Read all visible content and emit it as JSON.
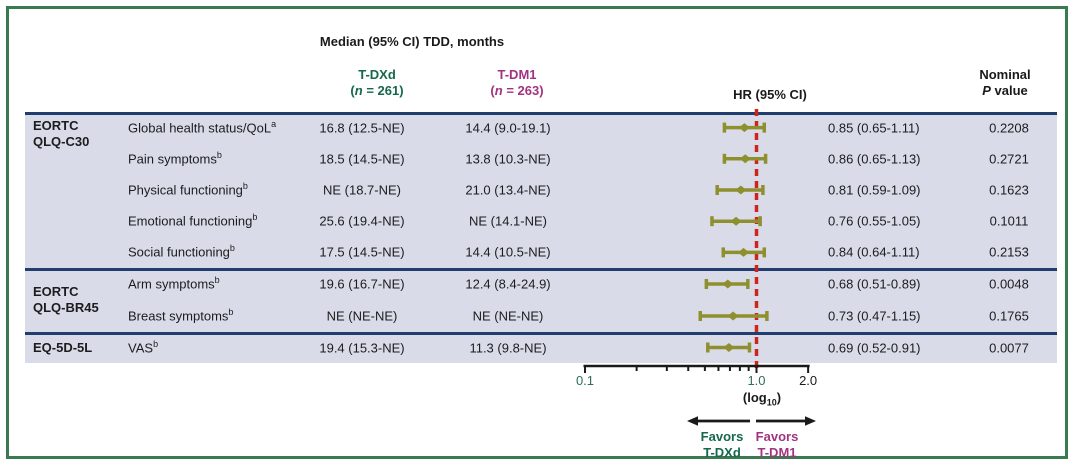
{
  "figure": {
    "title": "Median (95% CI) TDD, months",
    "columns": {
      "tdxd": {
        "name": "T-DXd",
        "n_open": "(",
        "n_italic": "n",
        "n_rest": " = 261)"
      },
      "tdm1": {
        "name": "T-DM1",
        "n_open": "(",
        "n_italic": "n",
        "n_rest": " = 263)"
      },
      "hr_header": "HR (95% CI)",
      "p_header_line1": "Nominal",
      "p_header_italic": "P",
      "p_header_rest": " value"
    }
  },
  "colors": {
    "frame_green": "#3a7a50",
    "band_bg": "#d9dce8",
    "navy_line": "#1f3e6e",
    "tdxd_green": "#15684b",
    "tdm1_magenta": "#a13380",
    "marker_olive": "#8e9030",
    "reference_red": "#cf241c",
    "axis_black": "#1a1a1a",
    "tick_green": "#2d6e58",
    "text": "#1c1c1e"
  },
  "chart_data": {
    "type": "forest",
    "title": "Median (95% CI) TDD, months",
    "x_scale": "log10",
    "x_min": 0.1,
    "x_max": 2.0,
    "reference_line": 1.0,
    "axis_ticks": [
      {
        "label": "0.1",
        "value": 0.1,
        "color": "#2d6e58"
      },
      {
        "label": "1.0",
        "value": 1.0,
        "color": "#2d6e58"
      },
      {
        "label": "2.0",
        "value": 2.0,
        "color": "#1a1a1a"
      }
    ],
    "minor_ticks": [
      0.2,
      0.3,
      0.4,
      0.5,
      0.6,
      0.7,
      0.8,
      0.9
    ],
    "axis_sublabel": {
      "pre": "(log",
      "sub": "10",
      "post": ")"
    },
    "favors_left": {
      "line1": "Favors",
      "line2": "T-DXd"
    },
    "favors_right": {
      "line1": "Favors",
      "line2": "T-DM1"
    },
    "groups": [
      {
        "name_lines": [
          "EORTC",
          "QLQ-C30"
        ],
        "rows": [
          {
            "label": "Global health status/QoL",
            "sup": "a",
            "tdxd": "16.8 (12.5-NE)",
            "tdm1": "14.4 (9.0-19.1)",
            "hr": 0.85,
            "ci_low": 0.65,
            "ci_high": 1.11,
            "hr_text": "0.85 (0.65-1.11)",
            "p": "0.2208"
          },
          {
            "label": "Pain symptoms",
            "sup": "b",
            "tdxd": "18.5 (14.5-NE)",
            "tdm1": "13.8 (10.3-NE)",
            "hr": 0.86,
            "ci_low": 0.65,
            "ci_high": 1.13,
            "hr_text": "0.86 (0.65-1.13)",
            "p": "0.2721"
          },
          {
            "label": "Physical functioning",
            "sup": "b",
            "tdxd": "NE (18.7-NE)",
            "tdm1": "21.0 (13.4-NE)",
            "hr": 0.81,
            "ci_low": 0.59,
            "ci_high": 1.09,
            "hr_text": "0.81 (0.59-1.09)",
            "p": "0.1623"
          },
          {
            "label": "Emotional functioning",
            "sup": "b",
            "tdxd": "25.6 (19.4-NE)",
            "tdm1": "NE (14.1-NE)",
            "hr": 0.76,
            "ci_low": 0.55,
            "ci_high": 1.05,
            "hr_text": "0.76 (0.55-1.05)",
            "p": "0.1011"
          },
          {
            "label": "Social functioning",
            "sup": "b",
            "tdxd": "17.5 (14.5-NE)",
            "tdm1": "14.4 (10.5-NE)",
            "hr": 0.84,
            "ci_low": 0.64,
            "ci_high": 1.11,
            "hr_text": "0.84 (0.64-1.11)",
            "p": "0.2153"
          }
        ]
      },
      {
        "name_lines": [
          "EORTC",
          "QLQ-BR45"
        ],
        "rows": [
          {
            "label": "Arm symptoms",
            "sup": "b",
            "tdxd": "19.6 (16.7-NE)",
            "tdm1": "12.4 (8.4-24.9)",
            "hr": 0.68,
            "ci_low": 0.51,
            "ci_high": 0.89,
            "hr_text": "0.68 (0.51-0.89)",
            "p": "0.0048"
          },
          {
            "label": "Breast symptoms",
            "sup": "b",
            "tdxd": "NE (NE-NE)",
            "tdm1": "NE (NE-NE)",
            "hr": 0.73,
            "ci_low": 0.47,
            "ci_high": 1.15,
            "hr_text": "0.73 (0.47-1.15)",
            "p": "0.1765"
          }
        ]
      },
      {
        "name_lines": [
          "EQ-5D-5L"
        ],
        "rows": [
          {
            "label": "VAS",
            "sup": "b",
            "tdxd": "19.4 (15.3-NE)",
            "tdm1": "11.3 (9.8-NE)",
            "hr": 0.69,
            "ci_low": 0.52,
            "ci_high": 0.91,
            "hr_text": "0.69 (0.52-0.91)",
            "p": "0.0077"
          }
        ]
      }
    ]
  }
}
